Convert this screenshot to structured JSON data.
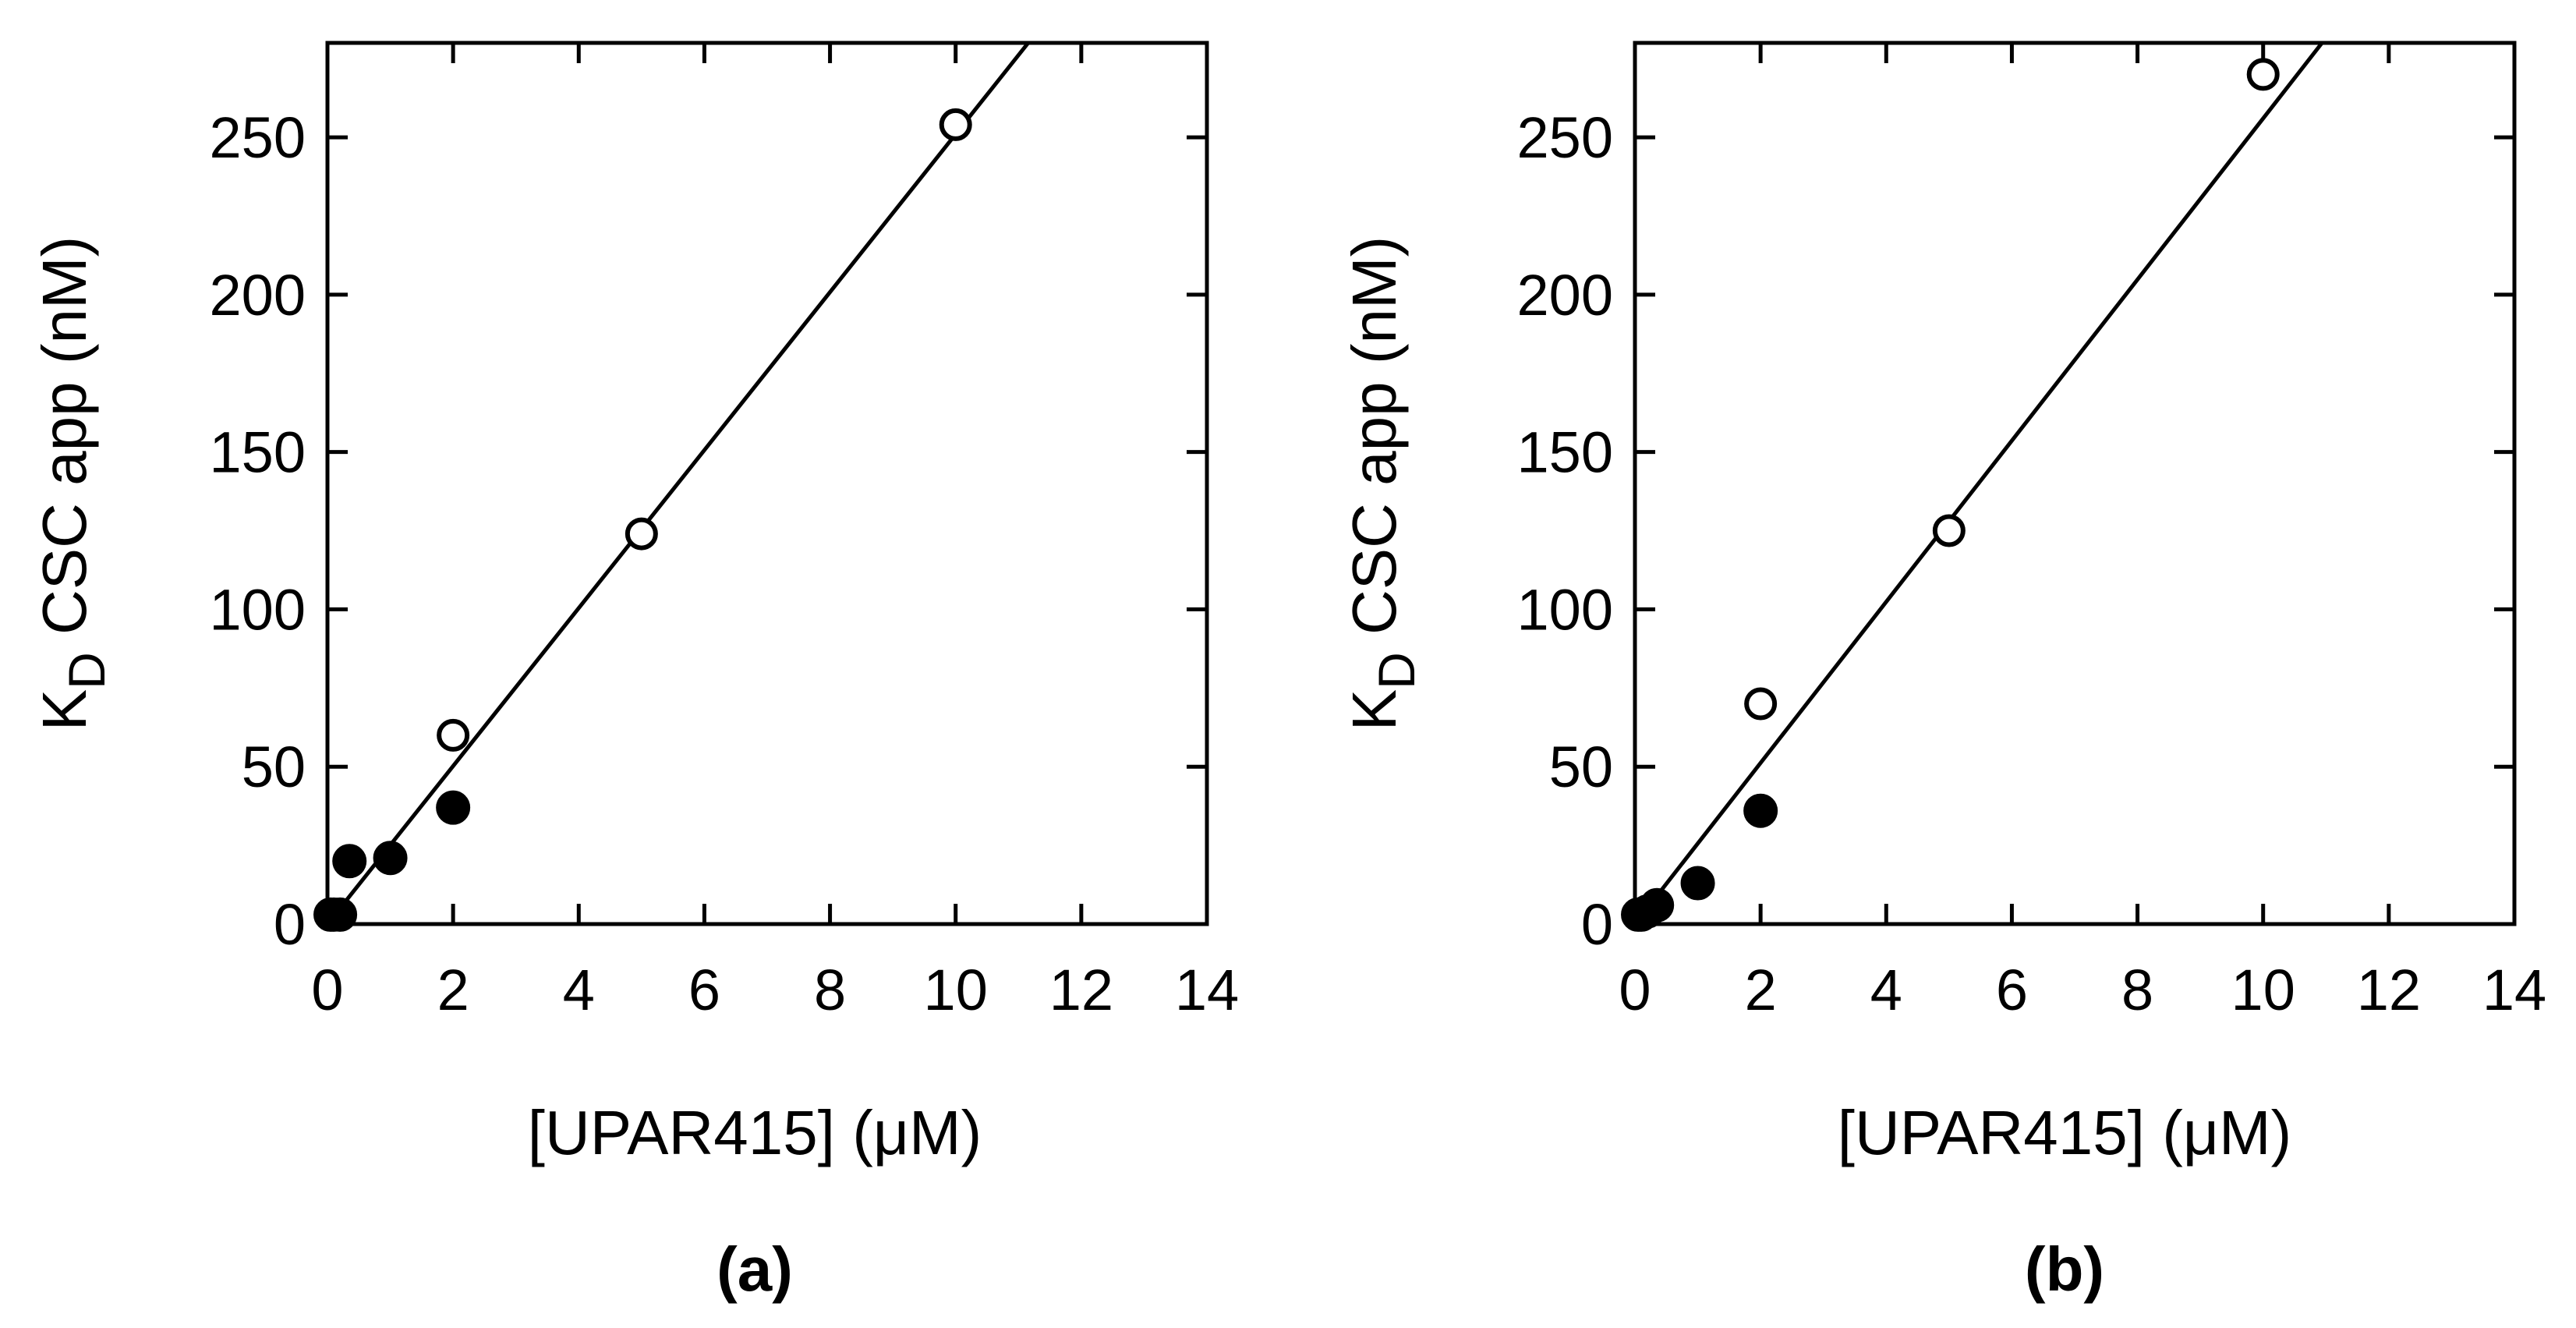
{
  "chart_data": [
    {
      "type": "scatter",
      "panel_label": "(a)",
      "xlabel": "[UPAR415] (μM)",
      "ylabel": {
        "main": "K",
        "sub": "D",
        "rest": " CSC app (nM)"
      },
      "xlim": [
        0,
        14
      ],
      "ylim": [
        0,
        280
      ],
      "x_ticks": [
        "0",
        "2",
        "4",
        "6",
        "8",
        "10",
        "12",
        "14"
      ],
      "y_ticks": [
        "0",
        "50",
        "100",
        "150",
        "200",
        "250"
      ],
      "series": [
        {
          "name": "open",
          "marker": "open-circle",
          "x": [
            2,
            5,
            10
          ],
          "y": [
            60,
            124,
            254
          ]
        },
        {
          "name": "filled",
          "marker": "filled-circle",
          "x": [
            0.05,
            0.1,
            0.2,
            0.35,
            1,
            2
          ],
          "y": [
            3,
            3,
            3,
            20,
            21,
            37
          ]
        }
      ],
      "fit_line": {
        "slope": 25.1,
        "intercept": 0
      }
    },
    {
      "type": "scatter",
      "panel_label": "(b)",
      "xlabel": "[UPAR415] (μM)",
      "ylabel": {
        "main": "K",
        "sub": "D",
        "rest": " CSC app (nM)"
      },
      "xlim": [
        0,
        14
      ],
      "ylim": [
        0,
        280
      ],
      "x_ticks": [
        "0",
        "2",
        "4",
        "6",
        "8",
        "10",
        "12",
        "14"
      ],
      "y_ticks": [
        "0",
        "50",
        "100",
        "150",
        "200",
        "250"
      ],
      "series": [
        {
          "name": "open",
          "marker": "open-circle",
          "x": [
            2,
            5,
            10
          ],
          "y": [
            70,
            125,
            270
          ]
        },
        {
          "name": "filled",
          "marker": "filled-circle",
          "x": [
            0.05,
            0.1,
            0.2,
            0.35,
            1,
            2
          ],
          "y": [
            3,
            3,
            4,
            6,
            13,
            36
          ]
        }
      ],
      "fit_line": {
        "slope": 25.6,
        "intercept": 0
      }
    }
  ]
}
